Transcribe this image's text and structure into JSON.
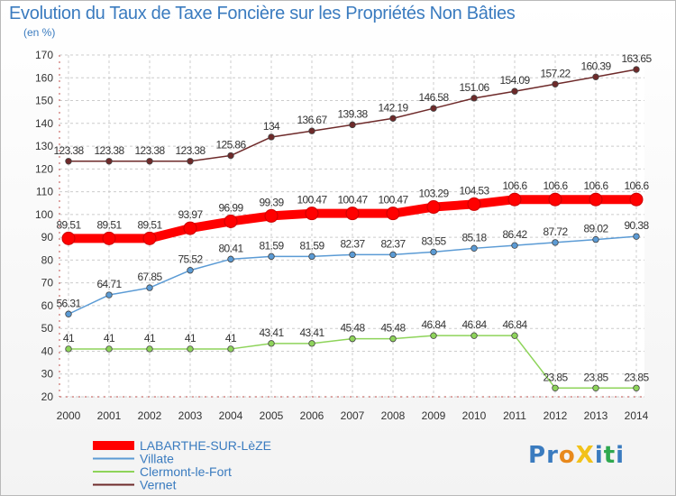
{
  "title": "Evolution du Taux de Taxe Foncière sur les Propriétés Non Bâties",
  "subtitle": "(en %)",
  "logo": "ProXiti",
  "chart_data": {
    "type": "line",
    "title": "Evolution du Taux de Taxe Foncière sur les Propriétés Non Bâties",
    "ylabel": "(en %)",
    "xlabel": "",
    "ylim": [
      20,
      170
    ],
    "yticks": [
      20,
      30,
      40,
      50,
      60,
      70,
      80,
      90,
      100,
      110,
      120,
      130,
      140,
      150,
      160,
      170
    ],
    "categories": [
      "2000",
      "2001",
      "2002",
      "2003",
      "2004",
      "2005",
      "2006",
      "2007",
      "2008",
      "2009",
      "2010",
      "2011",
      "2012",
      "2013",
      "2014"
    ],
    "grid": true,
    "legend": "bottom-left",
    "series": [
      {
        "name": "LABARTHE-SUR-LèZE",
        "color": "#ff0000",
        "values": [
          89.51,
          89.51,
          89.51,
          93.97,
          96.99,
          99.39,
          100.47,
          100.47,
          100.47,
          103.29,
          104.53,
          106.6,
          106.6,
          106.6,
          106.6
        ],
        "labels": [
          "89.51",
          "89.51",
          "89.51",
          "93.97",
          "96.99",
          "99.39",
          "100.47",
          "100.47",
          "100.47",
          "103.29",
          "104.53",
          "106.6",
          "106.6",
          "106.6",
          "106.6"
        ]
      },
      {
        "name": "Villate",
        "color": "#5b9bd5",
        "values": [
          56.31,
          64.71,
          67.85,
          75.52,
          80.41,
          81.59,
          81.59,
          82.37,
          82.37,
          83.55,
          85.18,
          86.42,
          87.72,
          89.02,
          90.38
        ],
        "labels": [
          "56.31",
          "64.71",
          "67.85",
          "75.52",
          "80.41",
          "81.59",
          "81.59",
          "82.37",
          "82.37",
          "83.55",
          "85.18",
          "86.42",
          "87.72",
          "89.02",
          "90.38"
        ]
      },
      {
        "name": "Clermont-le-Fort",
        "color": "#8ed45a",
        "values": [
          41,
          41,
          41,
          41,
          41,
          43.41,
          43.41,
          45.48,
          45.48,
          46.84,
          46.84,
          46.84,
          23.85,
          23.85,
          23.85
        ],
        "labels": [
          "41",
          "41",
          "41",
          "41",
          "41",
          "43.41",
          "43.41",
          "45.48",
          "45.48",
          "46.84",
          "46.84",
          "46.84",
          "23.85",
          "23.85",
          "23.85"
        ]
      },
      {
        "name": "Vernet",
        "color": "#6e2a2a",
        "values": [
          123.38,
          123.38,
          123.38,
          123.38,
          125.86,
          134,
          136.67,
          139.38,
          142.19,
          146.58,
          151.06,
          154.09,
          157.22,
          160.39,
          163.65
        ],
        "labels": [
          "123.38",
          "123.38",
          "123.38",
          "123.38",
          "125.86",
          "134",
          "136.67",
          "139.38",
          "142.19",
          "146.58",
          "151.06",
          "154.09",
          "157.22",
          "160.39",
          "163.65"
        ]
      }
    ]
  }
}
